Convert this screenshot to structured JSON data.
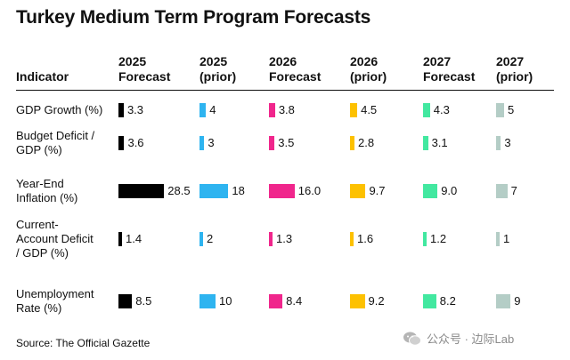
{
  "title": "Turkey Medium Term Program Forecasts",
  "source": "Source: The Official Gazette",
  "watermark": "公众号 · 边际Lab",
  "chart_data": {
    "type": "table",
    "title": "Turkey Medium Term Program Forecasts",
    "indicator_header": "Indicator",
    "columns": [
      {
        "line1": "2025",
        "line2": "Forecast",
        "color": "#000000"
      },
      {
        "line1": "2025",
        "line2": "(prior)",
        "color": "#2eb4f0"
      },
      {
        "line1": "2026",
        "line2": "Forecast",
        "color": "#f0268c"
      },
      {
        "line1": "2026",
        "line2": "(prior)",
        "color": "#fdc100"
      },
      {
        "line1": "2027",
        "line2": "Forecast",
        "color": "#42e8a0"
      },
      {
        "line1": "2027",
        "line2": "(prior)",
        "color": "#b4cdc6"
      }
    ],
    "rows": [
      {
        "label": [
          "GDP Growth (%)"
        ],
        "values": [
          3.3,
          4,
          3.8,
          4.5,
          4.3,
          5
        ],
        "labels": [
          "3.3",
          "4",
          "3.8",
          "4.5",
          "4.3",
          "5"
        ]
      },
      {
        "label": [
          "Budget Deficit /",
          "GDP (%)"
        ],
        "values": [
          3.6,
          3,
          3.5,
          2.8,
          3.1,
          3
        ],
        "labels": [
          "3.6",
          "3",
          "3.5",
          "2.8",
          "3.1",
          "3"
        ]
      },
      {
        "label": [
          "Year-End",
          "Inflation (%)"
        ],
        "values": [
          28.5,
          18,
          16.0,
          9.7,
          9.0,
          7
        ],
        "labels": [
          "28.5",
          "18",
          "16.0",
          "9.7",
          "9.0",
          "7"
        ]
      },
      {
        "label": [
          "Current-",
          "Account Deficit",
          "/ GDP (%)"
        ],
        "values": [
          1.4,
          2,
          1.3,
          1.6,
          1.2,
          1
        ],
        "labels": [
          "1.4",
          "2",
          "1.3",
          "1.6",
          "1.2",
          "1"
        ]
      },
      {
        "label": [
          "Unemployment",
          "Rate (%)"
        ],
        "values": [
          8.5,
          10,
          8.4,
          9.2,
          8.2,
          9
        ],
        "labels": [
          "8.5",
          "10",
          "8.4",
          "9.2",
          "8.2",
          "9"
        ]
      }
    ]
  }
}
